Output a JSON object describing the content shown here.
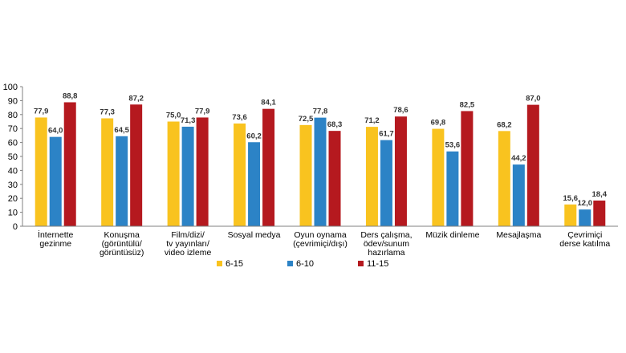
{
  "chart_data": {
    "type": "bar",
    "categories": [
      [
        "İnternette",
        "gezinme"
      ],
      [
        "Konuşma",
        "(görüntülü/",
        "görüntüsüz)"
      ],
      [
        "Film/dizi/",
        "tv yayınları/",
        "video izleme"
      ],
      [
        "Sosyal medya"
      ],
      [
        "Oyun oynama",
        "(çevrimiçi/dışı)"
      ],
      [
        "Ders çalışma,",
        "ödev/sunum",
        "hazırlama"
      ],
      [
        "Müzik dinleme"
      ],
      [
        "Mesajlaşma"
      ],
      [
        "Çevrimiçi",
        "derse katılma"
      ]
    ],
    "series": [
      {
        "name": "6-15",
        "color": "#F9C31F",
        "values": [
          77.9,
          77.3,
          75.0,
          73.6,
          72.5,
          71.2,
          69.8,
          68.2,
          15.6
        ],
        "labels": [
          "77,9",
          "77,3",
          "75,0",
          "73,6",
          "72,5",
          "71,2",
          "69,8",
          "68,2",
          "15,6"
        ]
      },
      {
        "name": "6-10",
        "color": "#2C83C6",
        "values": [
          64.0,
          64.5,
          71.3,
          60.2,
          77.8,
          61.7,
          53.6,
          44.2,
          12.0
        ],
        "labels": [
          "64,0",
          "64,5",
          "71,3",
          "60,2",
          "77,8",
          "61,7",
          "53,6",
          "44,2",
          "12,0"
        ]
      },
      {
        "name": "11-15",
        "color": "#B5191F",
        "values": [
          88.8,
          87.2,
          77.9,
          84.1,
          68.3,
          78.6,
          82.5,
          87.0,
          18.4
        ],
        "labels": [
          "88,8",
          "87,2",
          "77,9",
          "84,1",
          "68,3",
          "78,6",
          "82,5",
          "87,0",
          "18,4"
        ]
      }
    ],
    "ylim": [
      0,
      100
    ],
    "yticks": [
      0,
      10,
      20,
      30,
      40,
      50,
      60,
      70,
      80,
      90,
      100
    ],
    "grid": false,
    "legend_position": "bottom"
  }
}
